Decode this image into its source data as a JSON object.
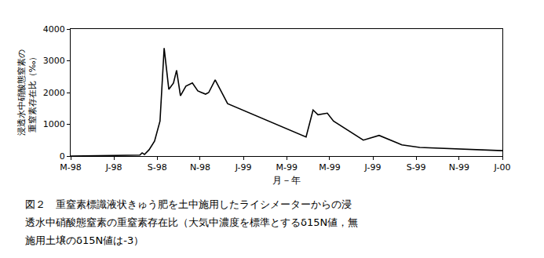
{
  "chart_data": {
    "type": "line",
    "x_label": "月－年",
    "y_label": "浸透水中硝酸態窒素の\n重窒素存在比（‰）",
    "caption": [
      "図２　重窒素標識液状きゅう肥を土中施用したライシメーターからの浸",
      "透水中硝酸態窒素の重窒素存在比（大気中濃度を標準とするδ15N値，無",
      "施用土壌のδ15N値は-3）"
    ],
    "x": [
      1998.333,
      1998.515,
      1998.6,
      1998.609,
      1998.618,
      1998.636,
      1998.657,
      1998.678,
      1998.694,
      1998.712,
      1998.73,
      1998.742,
      1998.757,
      1998.778,
      1998.803,
      1998.824,
      1998.854,
      1998.866,
      1998.891,
      1998.939,
      1999.242,
      1999.269,
      1999.288,
      1999.324,
      1999.348,
      1999.463,
      1999.524,
      1999.612,
      1999.681,
      2000.0
    ],
    "values": [
      0,
      20,
      30,
      100,
      50,
      200,
      470,
      1100,
      3400,
      2100,
      2300,
      2700,
      1900,
      2200,
      2300,
      2050,
      1950,
      2000,
      2400,
      1650,
      600,
      1450,
      1300,
      1350,
      1100,
      500,
      650,
      350,
      270,
      170
    ],
    "color": "#000000",
    "xlim": [
      1998.333,
      2000.0
    ],
    "xticks": [
      {
        "value": 1998.333,
        "label": "M-98"
      },
      {
        "value": 1998.5,
        "label": "J-98"
      },
      {
        "value": 1998.667,
        "label": "S-98"
      },
      {
        "value": 1998.833,
        "label": "N-98"
      },
      {
        "value": 1999.0,
        "label": "J-99"
      },
      {
        "value": 1999.167,
        "label": "M-99"
      },
      {
        "value": 1999.333,
        "label": "M-99"
      },
      {
        "value": 1999.5,
        "label": "J-99"
      },
      {
        "value": 1999.667,
        "label": "S-99"
      },
      {
        "value": 1999.833,
        "label": "N-99"
      },
      {
        "value": 2000.0,
        "label": "J-00"
      }
    ],
    "ylim": [
      0,
      4000
    ],
    "yticks": [
      0,
      1000,
      2000,
      3000,
      4000
    ],
    "grid": false
  }
}
